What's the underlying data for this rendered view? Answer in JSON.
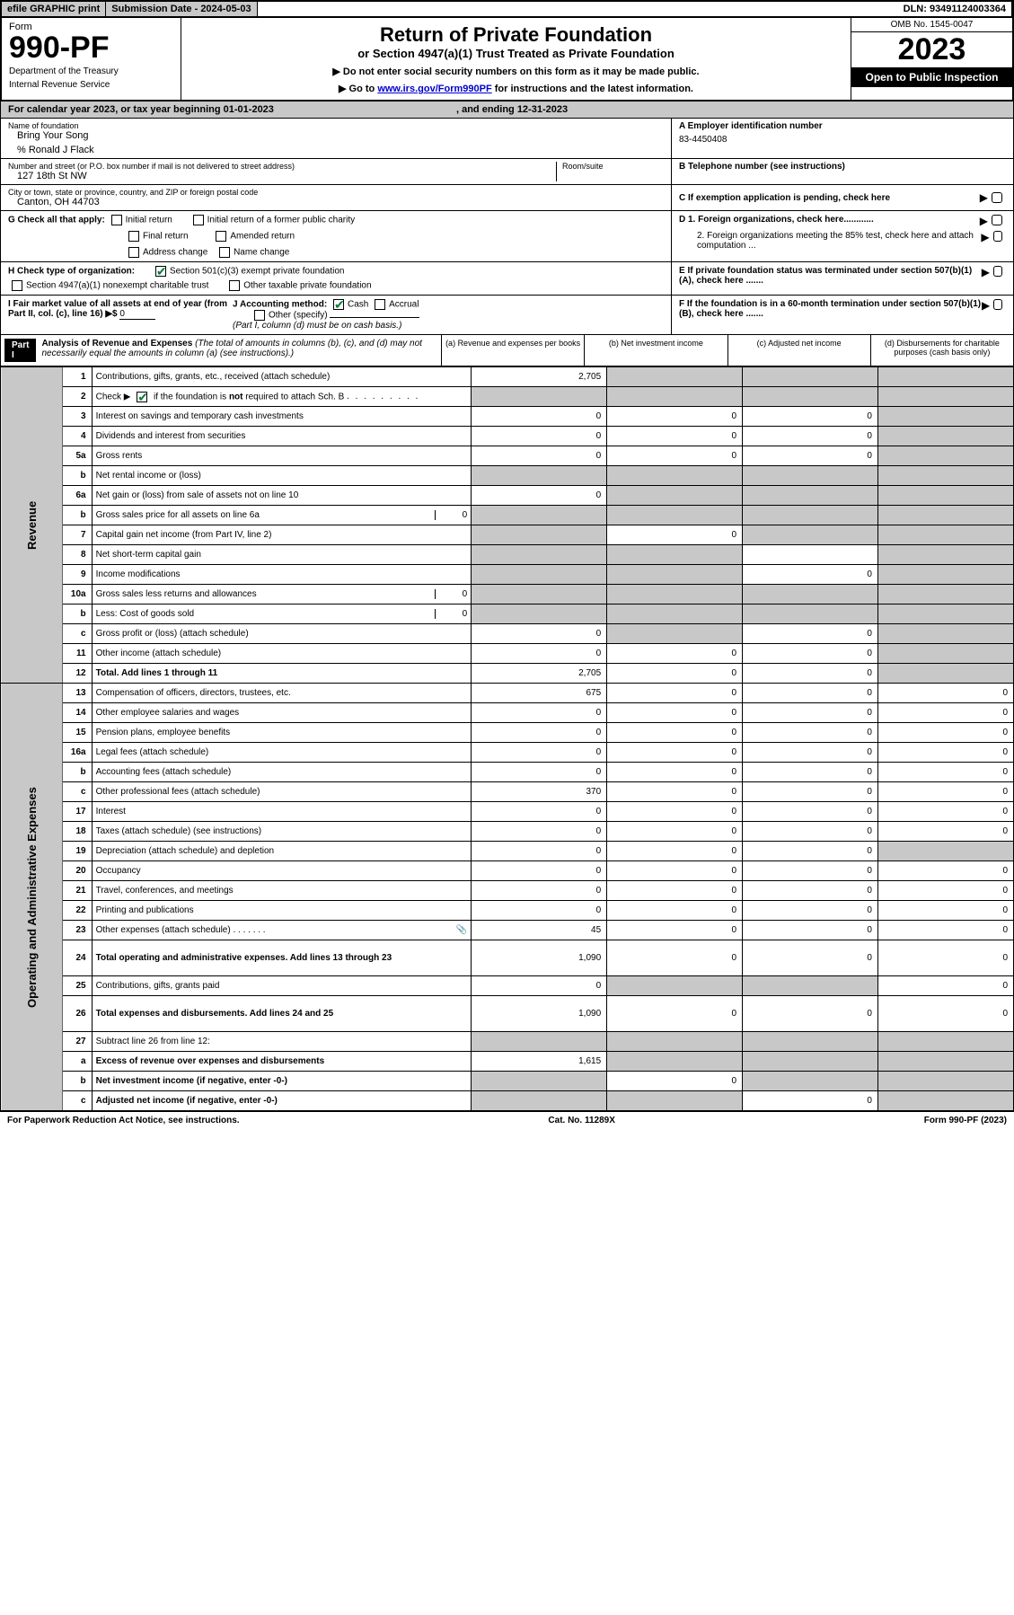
{
  "topbar": {
    "efile": "efile GRAPHIC print",
    "submission": "Submission Date - 2024-05-03",
    "dln": "DLN: 93491124003364"
  },
  "header": {
    "form_label": "Form",
    "form_num": "990-PF",
    "dept": "Department of the Treasury",
    "irs": "Internal Revenue Service",
    "title": "Return of Private Foundation",
    "sub1": "or Section 4947(a)(1) Trust Treated as Private Foundation",
    "sub2a": "▶ Do not enter social security numbers on this form as it may be made public.",
    "sub2b": "▶ Go to ",
    "link": "www.irs.gov/Form990PF",
    "sub2c": " for instructions and the latest information.",
    "omb": "OMB No. 1545-0047",
    "year": "2023",
    "open": "Open to Public Inspection"
  },
  "calyear": {
    "text": "For calendar year 2023, or tax year beginning 01-01-2023",
    "ending": ", and ending 12-31-2023"
  },
  "info": {
    "name_lbl": "Name of foundation",
    "name": "Bring Your Song",
    "care_lbl": "% Ronald J Flack",
    "addr_lbl": "Number and street (or P.O. box number if mail is not delivered to street address)",
    "addr": "127 18th St NW",
    "room_lbl": "Room/suite",
    "city_lbl": "City or town, state or province, country, and ZIP or foreign postal code",
    "city": "Canton, OH  44703",
    "ein_lbl": "A Employer identification number",
    "ein": "83-4450408",
    "tel_lbl": "B Telephone number (see instructions)",
    "c_lbl": "C If exemption application is pending, check here",
    "d1_lbl": "D 1. Foreign organizations, check here............",
    "d2_lbl": "2. Foreign organizations meeting the 85% test, check here and attach computation ...",
    "e_lbl": "E  If private foundation status was terminated under section 507(b)(1)(A), check here .......",
    "f_lbl": "F  If the foundation is in a 60-month termination under section 507(b)(1)(B), check here .......",
    "g_lbl": "G Check all that apply:",
    "g_opts": [
      "Initial return",
      "Initial return of a former public charity",
      "Final return",
      "Amended return",
      "Address change",
      "Name change"
    ],
    "h_lbl": "H Check type of organization:",
    "h_opts": [
      "Section 501(c)(3) exempt private foundation",
      "Section 4947(a)(1) nonexempt charitable trust",
      "Other taxable private foundation"
    ],
    "i_lbl": "I Fair market value of all assets at end of year (from Part II, col. (c), line 16) ▶$",
    "i_val": "0",
    "j_lbl": "J Accounting method:",
    "j_opts": [
      "Cash",
      "Accrual",
      "Other (specify)"
    ],
    "j_note": "(Part I, column (d) must be on cash basis.)"
  },
  "part1": {
    "label": "Part I",
    "title": "Analysis of Revenue and Expenses",
    "subtitle": "(The total of amounts in columns (b), (c), and (d) may not necessarily equal the amounts in column (a) (see instructions).)",
    "col_a": "(a)    Revenue and expenses per books",
    "col_b": "(b)    Net investment income",
    "col_c": "(c)   Adjusted net income",
    "col_d": "(d)   Disbursements for charitable purposes (cash basis only)"
  },
  "sidelabels": {
    "revenue": "Revenue",
    "expenses": "Operating and Administrative Expenses"
  },
  "rows": [
    {
      "ln": "1",
      "desc": "Contributions, gifts, grants, etc., received (attach schedule)",
      "a": "2,705",
      "b": "",
      "c": "",
      "d": "",
      "grey": [
        "b",
        "c",
        "d"
      ]
    },
    {
      "ln": "2",
      "desc": "Check ▶ ☑ if the foundation is not required to attach Sch. B",
      "a": "",
      "b": "",
      "c": "",
      "d": "",
      "grey": [
        "a",
        "b",
        "c",
        "d"
      ],
      "checkgreen": true
    },
    {
      "ln": "3",
      "desc": "Interest on savings and temporary cash investments",
      "a": "0",
      "b": "0",
      "c": "0",
      "d": "",
      "grey": [
        "d"
      ]
    },
    {
      "ln": "4",
      "desc": "Dividends and interest from securities",
      "a": "0",
      "b": "0",
      "c": "0",
      "d": "",
      "grey": [
        "d"
      ]
    },
    {
      "ln": "5a",
      "desc": "Gross rents",
      "a": "0",
      "b": "0",
      "c": "0",
      "d": "",
      "grey": [
        "d"
      ]
    },
    {
      "ln": "b",
      "desc": "Net rental income or (loss)",
      "a": "",
      "b": "",
      "c": "",
      "d": "",
      "grey": [
        "a",
        "b",
        "c",
        "d"
      ],
      "inlinebox": true
    },
    {
      "ln": "6a",
      "desc": "Net gain or (loss) from sale of assets not on line 10",
      "a": "0",
      "b": "",
      "c": "",
      "d": "",
      "grey": [
        "b",
        "c",
        "d"
      ]
    },
    {
      "ln": "b",
      "desc": "Gross sales price for all assets on line 6a",
      "a": "",
      "b": "",
      "c": "",
      "d": "",
      "grey": [
        "a",
        "b",
        "c",
        "d"
      ],
      "trailval": "0"
    },
    {
      "ln": "7",
      "desc": "Capital gain net income (from Part IV, line 2)",
      "a": "",
      "b": "0",
      "c": "",
      "d": "",
      "grey": [
        "a",
        "c",
        "d"
      ]
    },
    {
      "ln": "8",
      "desc": "Net short-term capital gain",
      "a": "",
      "b": "",
      "c": "",
      "d": "",
      "grey": [
        "a",
        "b",
        "d"
      ]
    },
    {
      "ln": "9",
      "desc": "Income modifications",
      "a": "",
      "b": "",
      "c": "0",
      "d": "",
      "grey": [
        "a",
        "b",
        "d"
      ]
    },
    {
      "ln": "10a",
      "desc": "Gross sales less returns and allowances",
      "a": "",
      "b": "",
      "c": "",
      "d": "",
      "grey": [
        "a",
        "b",
        "c",
        "d"
      ],
      "trailval": "0"
    },
    {
      "ln": "b",
      "desc": "Less: Cost of goods sold",
      "a": "",
      "b": "",
      "c": "",
      "d": "",
      "grey": [
        "a",
        "b",
        "c",
        "d"
      ],
      "trailval": "0"
    },
    {
      "ln": "c",
      "desc": "Gross profit or (loss) (attach schedule)",
      "a": "0",
      "b": "",
      "c": "0",
      "d": "",
      "grey": [
        "b",
        "d"
      ]
    },
    {
      "ln": "11",
      "desc": "Other income (attach schedule)",
      "a": "0",
      "b": "0",
      "c": "0",
      "d": "",
      "grey": [
        "d"
      ]
    },
    {
      "ln": "12",
      "desc": "Total. Add lines 1 through 11",
      "a": "2,705",
      "b": "0",
      "c": "0",
      "d": "",
      "grey": [
        "d"
      ],
      "bold": true
    },
    {
      "ln": "13",
      "desc": "Compensation of officers, directors, trustees, etc.",
      "a": "675",
      "b": "0",
      "c": "0",
      "d": "0"
    },
    {
      "ln": "14",
      "desc": "Other employee salaries and wages",
      "a": "0",
      "b": "0",
      "c": "0",
      "d": "0"
    },
    {
      "ln": "15",
      "desc": "Pension plans, employee benefits",
      "a": "0",
      "b": "0",
      "c": "0",
      "d": "0"
    },
    {
      "ln": "16a",
      "desc": "Legal fees (attach schedule)",
      "a": "0",
      "b": "0",
      "c": "0",
      "d": "0"
    },
    {
      "ln": "b",
      "desc": "Accounting fees (attach schedule)",
      "a": "0",
      "b": "0",
      "c": "0",
      "d": "0"
    },
    {
      "ln": "c",
      "desc": "Other professional fees (attach schedule)",
      "a": "370",
      "b": "0",
      "c": "0",
      "d": "0"
    },
    {
      "ln": "17",
      "desc": "Interest",
      "a": "0",
      "b": "0",
      "c": "0",
      "d": "0"
    },
    {
      "ln": "18",
      "desc": "Taxes (attach schedule) (see instructions)",
      "a": "0",
      "b": "0",
      "c": "0",
      "d": "0"
    },
    {
      "ln": "19",
      "desc": "Depreciation (attach schedule) and depletion",
      "a": "0",
      "b": "0",
      "c": "0",
      "d": "",
      "grey": [
        "d"
      ]
    },
    {
      "ln": "20",
      "desc": "Occupancy",
      "a": "0",
      "b": "0",
      "c": "0",
      "d": "0"
    },
    {
      "ln": "21",
      "desc": "Travel, conferences, and meetings",
      "a": "0",
      "b": "0",
      "c": "0",
      "d": "0"
    },
    {
      "ln": "22",
      "desc": "Printing and publications",
      "a": "0",
      "b": "0",
      "c": "0",
      "d": "0"
    },
    {
      "ln": "23",
      "desc": "Other expenses (attach schedule)",
      "a": "45",
      "b": "0",
      "c": "0",
      "d": "0",
      "icon": true
    },
    {
      "ln": "24",
      "desc": "Total operating and administrative expenses. Add lines 13 through 23",
      "a": "1,090",
      "b": "0",
      "c": "0",
      "d": "0",
      "bold": true,
      "tall": true
    },
    {
      "ln": "25",
      "desc": "Contributions, gifts, grants paid",
      "a": "0",
      "b": "",
      "c": "",
      "d": "0",
      "grey": [
        "b",
        "c"
      ]
    },
    {
      "ln": "26",
      "desc": "Total expenses and disbursements. Add lines 24 and 25",
      "a": "1,090",
      "b": "0",
      "c": "0",
      "d": "0",
      "bold": true,
      "tall": true
    },
    {
      "ln": "27",
      "desc": "Subtract line 26 from line 12:",
      "a": "",
      "b": "",
      "c": "",
      "d": "",
      "grey": [
        "a",
        "b",
        "c",
        "d"
      ]
    },
    {
      "ln": "a",
      "desc": "Excess of revenue over expenses and disbursements",
      "a": "1,615",
      "b": "",
      "c": "",
      "d": "",
      "grey": [
        "b",
        "c",
        "d"
      ],
      "bold": true
    },
    {
      "ln": "b",
      "desc": "Net investment income (if negative, enter -0-)",
      "a": "",
      "b": "0",
      "c": "",
      "d": "",
      "grey": [
        "a",
        "c",
        "d"
      ],
      "bold": true
    },
    {
      "ln": "c",
      "desc": "Adjusted net income (if negative, enter -0-)",
      "a": "",
      "b": "",
      "c": "0",
      "d": "",
      "grey": [
        "a",
        "b",
        "d"
      ],
      "bold": true
    }
  ],
  "footer": {
    "left": "For Paperwork Reduction Act Notice, see instructions.",
    "center": "Cat. No. 11289X",
    "right": "Form 990-PF (2023)"
  }
}
